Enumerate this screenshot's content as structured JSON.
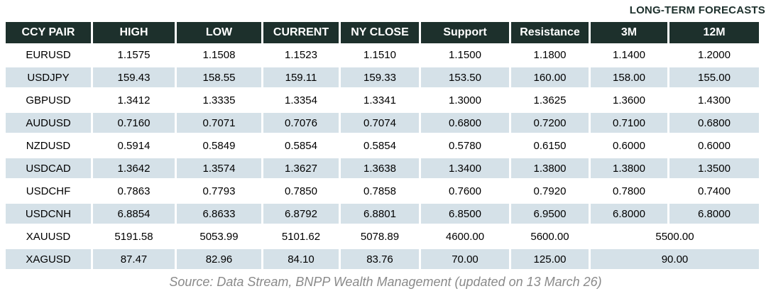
{
  "title": "LONG-TERM FORECASTS",
  "table": {
    "columns": [
      "CCY PAIR",
      "HIGH",
      "LOW",
      "CURRENT",
      "NY CLOSE",
      "Support",
      "Resistance",
      "3M",
      "12M"
    ],
    "rows": [
      {
        "pair": "EURUSD",
        "high": "1.1575",
        "low": "1.1508",
        "current": "1.1523",
        "ny_close": "1.1510",
        "support": "1.1500",
        "resistance": "1.1800",
        "forecast_3m": "1.1400",
        "forecast_12m": "1.2000",
        "forecast_merged": null
      },
      {
        "pair": "USDJPY",
        "high": "159.43",
        "low": "158.55",
        "current": "159.11",
        "ny_close": "159.33",
        "support": "153.50",
        "resistance": "160.00",
        "forecast_3m": "158.00",
        "forecast_12m": "155.00",
        "forecast_merged": null
      },
      {
        "pair": "GBPUSD",
        "high": "1.3412",
        "low": "1.3335",
        "current": "1.3354",
        "ny_close": "1.3341",
        "support": "1.3000",
        "resistance": "1.3625",
        "forecast_3m": "1.3600",
        "forecast_12m": "1.4300",
        "forecast_merged": null
      },
      {
        "pair": "AUDUSD",
        "high": "0.7160",
        "low": "0.7071",
        "current": "0.7076",
        "ny_close": "0.7074",
        "support": "0.6800",
        "resistance": "0.7200",
        "forecast_3m": "0.7100",
        "forecast_12m": "0.6800",
        "forecast_merged": null
      },
      {
        "pair": "NZDUSD",
        "high": "0.5914",
        "low": "0.5849",
        "current": "0.5854",
        "ny_close": "0.5854",
        "support": "0.5780",
        "resistance": "0.6150",
        "forecast_3m": "0.6000",
        "forecast_12m": "0.6000",
        "forecast_merged": null
      },
      {
        "pair": "USDCAD",
        "high": "1.3642",
        "low": "1.3574",
        "current": "1.3627",
        "ny_close": "1.3638",
        "support": "1.3400",
        "resistance": "1.3800",
        "forecast_3m": "1.3800",
        "forecast_12m": "1.3500",
        "forecast_merged": null
      },
      {
        "pair": "USDCHF",
        "high": "0.7863",
        "low": "0.7793",
        "current": "0.7850",
        "ny_close": "0.7858",
        "support": "0.7600",
        "resistance": "0.7920",
        "forecast_3m": "0.7800",
        "forecast_12m": "0.7400",
        "forecast_merged": null
      },
      {
        "pair": "USDCNH",
        "high": "6.8854",
        "low": "6.8633",
        "current": "6.8792",
        "ny_close": "6.8801",
        "support": "6.8500",
        "resistance": "6.9500",
        "forecast_3m": "6.8000",
        "forecast_12m": "6.8000",
        "forecast_merged": null
      },
      {
        "pair": "XAUUSD",
        "high": "5191.58",
        "low": "5053.99",
        "current": "5101.62",
        "ny_close": "5078.89",
        "support": "4600.00",
        "resistance": "5600.00",
        "forecast_3m": null,
        "forecast_12m": null,
        "forecast_merged": "5500.00"
      },
      {
        "pair": "XAGUSD",
        "high": "87.47",
        "low": "82.96",
        "current": "84.10",
        "ny_close": "83.76",
        "support": "70.00",
        "resistance": "125.00",
        "forecast_3m": null,
        "forecast_12m": null,
        "forecast_merged": "90.00"
      }
    ]
  },
  "footer": {
    "source": "Source: Data Stream, BNPP Wealth Management (updated on 13 March 26)"
  },
  "colors": {
    "header_bg": "#1d302c",
    "header_text": "#ffffff",
    "stripe_bg": "#d5e1e8",
    "title_text": "#1d302c",
    "source_text": "#8a8a8a",
    "data_text": "#000000"
  }
}
